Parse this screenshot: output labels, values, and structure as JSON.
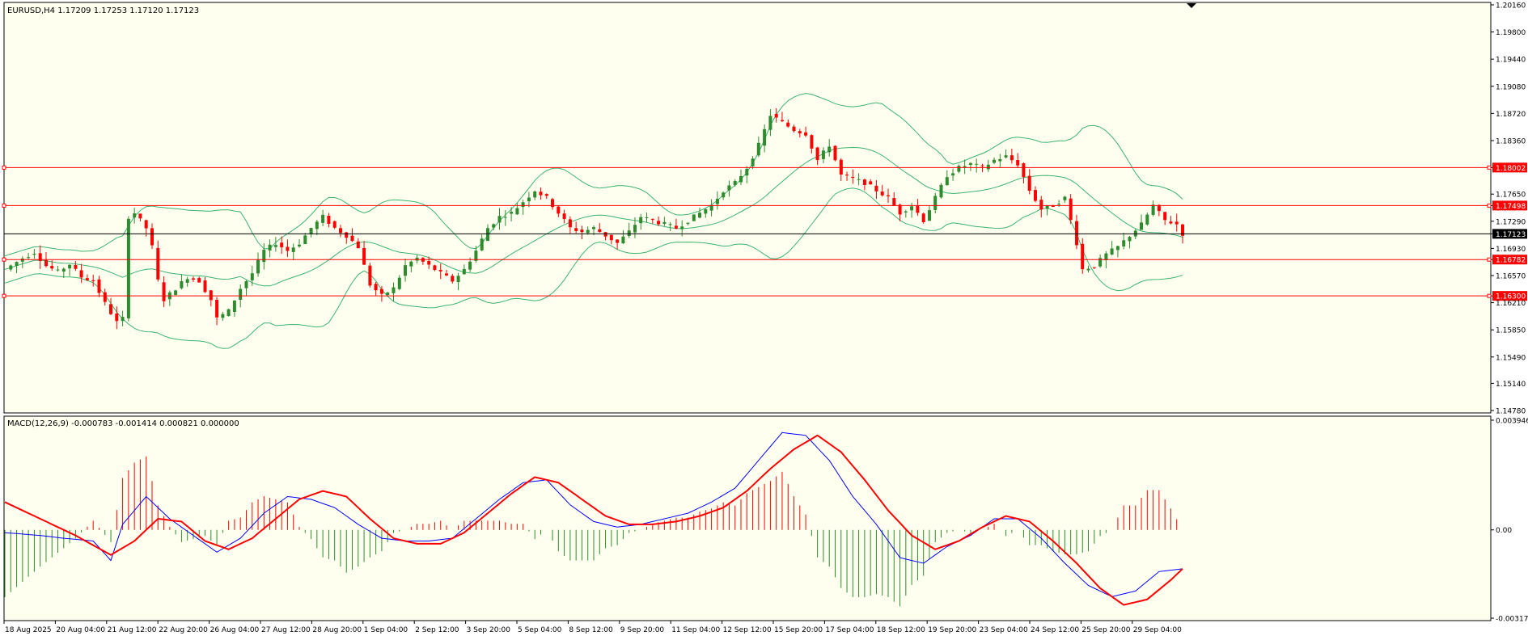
{
  "colors": {
    "background": "#fffff0",
    "axis": "#000000",
    "bull": "#2e8b2e",
    "bear": "#ff0000",
    "bands": "#3cb371",
    "level_line": "#ff0000",
    "current_price_line": "#000000",
    "macd_line": "#0000ff",
    "signal_line": "#ff0000"
  },
  "main_panel": {
    "info": "EURUSD,H4  1.17209 1.17253 1.17120 1.17123",
    "price_scale": [
      "1.20160",
      "1.19800",
      "1.19440",
      "1.19080",
      "1.18720",
      "1.18360",
      "1.18002",
      "1.17650",
      "1.17498",
      "1.17290",
      "1.17123",
      "1.16930",
      "1.16782",
      "1.16570",
      "1.16300",
      "1.16210",
      "1.15850",
      "1.15490",
      "1.15140",
      "1.14780"
    ],
    "horizontal_levels": [
      {
        "label": "1.18002",
        "price": 1.18002,
        "tag_color": "#ff0000"
      },
      {
        "label": "1.17498",
        "price": 1.17498,
        "tag_color": "#ff0000"
      },
      {
        "label": "1.17123",
        "price": 1.17123,
        "tag_color": "#000000"
      },
      {
        "label": "1.16782",
        "price": 1.16782,
        "tag_color": "#ff0000"
      },
      {
        "label": "1.16300",
        "price": 1.163,
        "tag_color": "#ff0000"
      }
    ],
    "price_min": 1.1478,
    "price_max": 1.2016
  },
  "macd_panel": {
    "info": "MACD(12,26,9) -0.000783 -0.001414 0.000821 0.000000",
    "scale": [
      "0.003946",
      "0.00",
      "-0.003176"
    ],
    "value_max": 0.003946,
    "value_min": -0.003176
  },
  "time_axis": [
    "18 Aug 2025",
    "20 Aug 04:00",
    "21 Aug 12:00",
    "22 Aug 20:00",
    "26 Aug 04:00",
    "27 Aug 12:00",
    "28 Aug 20:00",
    "1 Sep 04:00",
    "2 Sep 12:00",
    "3 Sep 20:00",
    "5 Sep 04:00",
    "8 Sep 12:00",
    "9 Sep 20:00",
    "11 Sep 04:00",
    "12 Sep 12:00",
    "15 Sep 20:00",
    "17 Sep 04:00",
    "18 Sep 12:00",
    "19 Sep 20:00",
    "23 Sep 04:00",
    "24 Sep 12:00",
    "25 Sep 20:00",
    "29 Sep 04:00"
  ],
  "chart_data": {
    "type": "candlestick",
    "symbol": "EURUSD",
    "timeframe": "H4",
    "close_path": [
      [
        0,
        1.1665
      ],
      [
        3,
        1.168
      ],
      [
        5,
        1.1688
      ],
      [
        7,
        1.167
      ],
      [
        9,
        1.1662
      ],
      [
        11,
        1.1672
      ],
      [
        13,
        1.1655
      ],
      [
        15,
        1.165
      ],
      [
        17,
        1.162
      ],
      [
        19,
        1.1595
      ],
      [
        20,
        1.16
      ],
      [
        21,
        1.1735
      ],
      [
        22,
        1.174
      ],
      [
        24,
        1.172
      ],
      [
        25,
        1.1695
      ],
      [
        26,
        1.165
      ],
      [
        27,
        1.1625
      ],
      [
        29,
        1.164
      ],
      [
        31,
        1.1655
      ],
      [
        33,
        1.165
      ],
      [
        35,
        1.1625
      ],
      [
        36,
        1.16
      ],
      [
        38,
        1.161
      ],
      [
        40,
        1.164
      ],
      [
        42,
        1.166
      ],
      [
        44,
        1.169
      ],
      [
        46,
        1.17
      ],
      [
        48,
        1.169
      ],
      [
        50,
        1.17
      ],
      [
        52,
        1.172
      ],
      [
        54,
        1.1735
      ],
      [
        56,
        1.172
      ],
      [
        58,
        1.171
      ],
      [
        60,
        1.1695
      ],
      [
        62,
        1.1645
      ],
      [
        64,
        1.163
      ],
      [
        66,
        1.164
      ],
      [
        68,
        1.167
      ],
      [
        70,
        1.168
      ],
      [
        72,
        1.167
      ],
      [
        74,
        1.166
      ],
      [
        76,
        1.165
      ],
      [
        78,
        1.1665
      ],
      [
        80,
        1.169
      ],
      [
        82,
        1.172
      ],
      [
        84,
        1.1735
      ],
      [
        86,
        1.174
      ],
      [
        88,
        1.1755
      ],
      [
        90,
        1.177
      ],
      [
        92,
        1.176
      ],
      [
        94,
        1.174
      ],
      [
        96,
        1.172
      ],
      [
        98,
        1.1715
      ],
      [
        100,
        1.172
      ],
      [
        102,
        1.171
      ],
      [
        104,
        1.17
      ],
      [
        106,
        1.1715
      ],
      [
        108,
        1.1735
      ],
      [
        110,
        1.173
      ],
      [
        112,
        1.1725
      ],
      [
        114,
        1.172
      ],
      [
        116,
        1.173
      ],
      [
        118,
        1.174
      ],
      [
        120,
        1.175
      ],
      [
        122,
        1.177
      ],
      [
        124,
        1.178
      ],
      [
        126,
        1.18
      ],
      [
        128,
        1.183
      ],
      [
        130,
        1.187
      ],
      [
        132,
        1.186
      ],
      [
        134,
        1.185
      ],
      [
        136,
        1.1845
      ],
      [
        138,
        1.181
      ],
      [
        140,
        1.183
      ],
      [
        142,
        1.179
      ],
      [
        144,
        1.1785
      ],
      [
        146,
        1.178
      ],
      [
        148,
        1.177
      ],
      [
        150,
        1.176
      ],
      [
        152,
        1.174
      ],
      [
        154,
        1.175
      ],
      [
        156,
        1.173
      ],
      [
        158,
        1.176
      ],
      [
        160,
        1.179
      ],
      [
        162,
        1.18
      ],
      [
        164,
        1.1805
      ],
      [
        166,
        1.18
      ],
      [
        168,
        1.181
      ],
      [
        170,
        1.1815
      ],
      [
        172,
        1.1805
      ],
      [
        174,
        1.177
      ],
      [
        176,
        1.1745
      ],
      [
        178,
        1.175
      ],
      [
        180,
        1.176
      ],
      [
        182,
        1.17
      ],
      [
        183,
        1.1665
      ],
      [
        185,
        1.167
      ],
      [
        187,
        1.1685
      ],
      [
        189,
        1.1695
      ],
      [
        191,
        1.171
      ],
      [
        193,
        1.1725
      ],
      [
        195,
        1.175
      ],
      [
        197,
        1.173
      ],
      [
        199,
        1.1725
      ],
      [
        200,
        1.17123
      ]
    ],
    "macd_path": [
      [
        0,
        -0.0001
      ],
      [
        6,
        -0.0002
      ],
      [
        10,
        -0.0003
      ],
      [
        15,
        -0.0004
      ],
      [
        18,
        -0.0011
      ],
      [
        20,
        0.0002
      ],
      [
        24,
        0.0012
      ],
      [
        28,
        0.0004
      ],
      [
        32,
        -0.0002
      ],
      [
        36,
        -0.0008
      ],
      [
        40,
        -0.0003
      ],
      [
        44,
        0.0006
      ],
      [
        48,
        0.0012
      ],
      [
        52,
        0.0011
      ],
      [
        56,
        0.0008
      ],
      [
        60,
        0.0002
      ],
      [
        64,
        -0.0003
      ],
      [
        68,
        -0.0004
      ],
      [
        72,
        -0.0004
      ],
      [
        76,
        -0.0003
      ],
      [
        80,
        0.0004
      ],
      [
        84,
        0.0011
      ],
      [
        88,
        0.0017
      ],
      [
        92,
        0.0018
      ],
      [
        96,
        0.0009
      ],
      [
        100,
        0.0003
      ],
      [
        104,
        0.0001
      ],
      [
        108,
        0.0002
      ],
      [
        112,
        0.0004
      ],
      [
        116,
        0.0006
      ],
      [
        120,
        0.001
      ],
      [
        124,
        0.0015
      ],
      [
        128,
        0.0025
      ],
      [
        132,
        0.0035
      ],
      [
        136,
        0.0034
      ],
      [
        140,
        0.0025
      ],
      [
        144,
        0.0012
      ],
      [
        148,
        0.0002
      ],
      [
        152,
        -0.001
      ],
      [
        156,
        -0.0012
      ],
      [
        160,
        -0.0006
      ],
      [
        164,
        -0.0002
      ],
      [
        168,
        0.0004
      ],
      [
        172,
        0.0004
      ],
      [
        176,
        -0.0003
      ],
      [
        180,
        -0.0012
      ],
      [
        184,
        -0.002
      ],
      [
        188,
        -0.0024
      ],
      [
        192,
        -0.0022
      ],
      [
        196,
        -0.0015
      ],
      [
        200,
        -0.0014
      ]
    ],
    "signal_path": [
      [
        0,
        0.001
      ],
      [
        6,
        0.0004
      ],
      [
        12,
        -0.0002
      ],
      [
        18,
        -0.0009
      ],
      [
        22,
        -0.0004
      ],
      [
        26,
        0.0004
      ],
      [
        30,
        0.0003
      ],
      [
        34,
        -0.0004
      ],
      [
        38,
        -0.0007
      ],
      [
        42,
        -0.0003
      ],
      [
        46,
        0.0004
      ],
      [
        50,
        0.0011
      ],
      [
        54,
        0.0014
      ],
      [
        58,
        0.0012
      ],
      [
        62,
        0.0004
      ],
      [
        66,
        -0.0003
      ],
      [
        70,
        -0.0005
      ],
      [
        74,
        -0.0005
      ],
      [
        78,
        -0.0001
      ],
      [
        82,
        0.0006
      ],
      [
        86,
        0.0013
      ],
      [
        90,
        0.0019
      ],
      [
        94,
        0.0017
      ],
      [
        98,
        0.0011
      ],
      [
        102,
        0.0005
      ],
      [
        106,
        0.0002
      ],
      [
        110,
        0.0002
      ],
      [
        114,
        0.0003
      ],
      [
        118,
        0.0005
      ],
      [
        122,
        0.0008
      ],
      [
        126,
        0.0014
      ],
      [
        130,
        0.0022
      ],
      [
        134,
        0.0029
      ],
      [
        138,
        0.0034
      ],
      [
        142,
        0.0028
      ],
      [
        146,
        0.0018
      ],
      [
        150,
        0.0007
      ],
      [
        154,
        -0.0002
      ],
      [
        158,
        -0.0007
      ],
      [
        162,
        -0.0004
      ],
      [
        166,
        0.0001
      ],
      [
        170,
        0.0005
      ],
      [
        174,
        0.0003
      ],
      [
        178,
        -0.0004
      ],
      [
        182,
        -0.0012
      ],
      [
        186,
        -0.0021
      ],
      [
        190,
        -0.0027
      ],
      [
        194,
        -0.0025
      ],
      [
        198,
        -0.0018
      ],
      [
        200,
        -0.0014
      ]
    ]
  }
}
